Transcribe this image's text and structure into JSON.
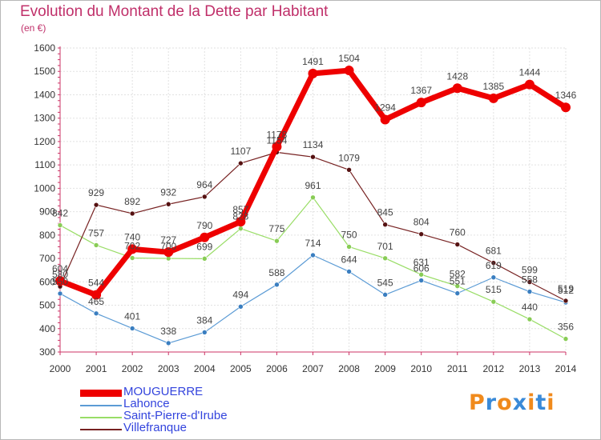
{
  "chart_data": {
    "type": "line",
    "title": "Evolution du Montant de la Dette par Habitant",
    "subtitle": "(en €)",
    "categories": [
      "2000",
      "2001",
      "2002",
      "2003",
      "2004",
      "2005",
      "2006",
      "2007",
      "2008",
      "2009",
      "2010",
      "2011",
      "2012",
      "2013",
      "2014"
    ],
    "ylim": [
      300,
      1600
    ],
    "yticks": [
      300,
      400,
      500,
      600,
      700,
      800,
      900,
      1000,
      1100,
      1200,
      1300,
      1400,
      1500,
      1600
    ],
    "grid": true,
    "legend_position": "bottom-left",
    "series": [
      {
        "name": "MOUGUERRE",
        "color": "#ee0000",
        "values": [
          604,
          544,
          740,
          727,
          790,
          857,
          1178,
          1491,
          1504,
          1294,
          1367,
          1428,
          1385,
          1444,
          1346
        ]
      },
      {
        "name": "Lahonce",
        "color": "#5b9bd5",
        "values": [
          550,
          465,
          401,
          338,
          384,
          494,
          588,
          714,
          644,
          545,
          606,
          551,
          619,
          558,
          512
        ]
      },
      {
        "name": "Saint-Pierre-d'Irube",
        "color": "#99dd66",
        "values": [
          842,
          757,
          702,
          700,
          699,
          828,
          775,
          961,
          750,
          701,
          631,
          582,
          515,
          440,
          356
        ]
      },
      {
        "name": "Villefranque",
        "color": "#772222",
        "values": [
          580,
          929,
          892,
          932,
          964,
          1107,
          1154,
          1134,
          1079,
          845,
          804,
          760,
          681,
          599,
          519
        ]
      }
    ]
  },
  "logo": {
    "text": "Proxiti",
    "colors": [
      "#f08a1c",
      "#3a8ad8",
      "#f08a1c",
      "#3a8ad8",
      "#f08a1c",
      "#3a8ad8",
      "#f08a1c"
    ]
  }
}
